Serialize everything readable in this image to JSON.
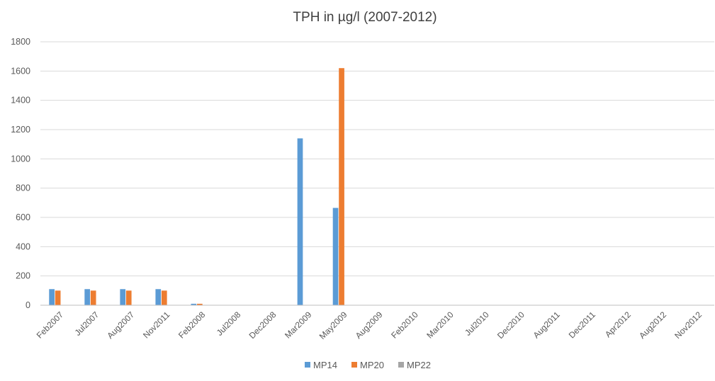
{
  "chart_data": {
    "type": "bar",
    "title": "TPH  in µg/l (2007-2012)",
    "xlabel": "",
    "ylabel": "",
    "ylim": [
      0,
      1800
    ],
    "yticks": [
      0,
      200,
      400,
      600,
      800,
      1000,
      1200,
      1400,
      1600,
      1800
    ],
    "grid": true,
    "legend": "bottom",
    "categories": [
      "Feb2007",
      "Jul2007",
      "Aug2007",
      "Nov2011",
      "Feb2008",
      "Jul2008",
      "Dec2008",
      "Mar2009",
      "May2009",
      "Aug2009",
      "Feb2010",
      "Mar2010",
      "Jul2010",
      "Dec2010",
      "Aug2011",
      "Dec2011",
      "Apr2012",
      "Aug2012",
      "Nov2012"
    ],
    "series": [
      {
        "name": "MP14",
        "color": "#5b9bd5",
        "values": [
          110,
          110,
          110,
          110,
          10,
          0,
          0,
          1140,
          665,
          0,
          0,
          0,
          0,
          0,
          0,
          0,
          0,
          0,
          0
        ]
      },
      {
        "name": "MP20",
        "color": "#ed7d31",
        "values": [
          100,
          100,
          100,
          100,
          10,
          0,
          0,
          0,
          1620,
          0,
          0,
          0,
          0,
          0,
          0,
          0,
          0,
          0,
          0
        ]
      },
      {
        "name": "MP22",
        "color": "#a5a5a5",
        "values": [
          0,
          0,
          0,
          0,
          0,
          0,
          0,
          0,
          0,
          0,
          0,
          0,
          0,
          0,
          0,
          0,
          0,
          0,
          0
        ]
      }
    ]
  }
}
